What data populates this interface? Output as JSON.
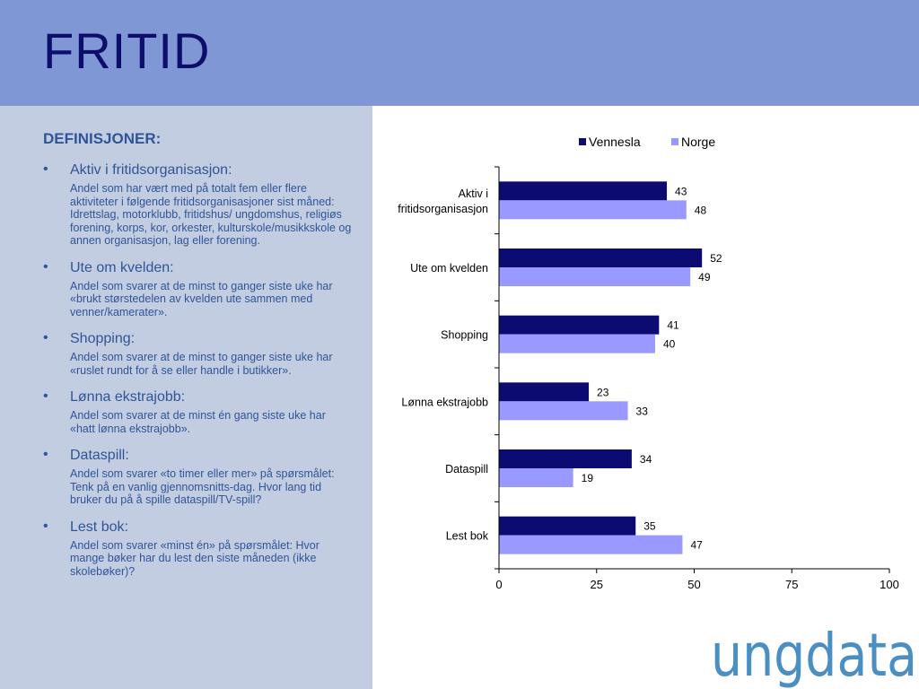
{
  "slide": {
    "title": "FRITID"
  },
  "definitions": {
    "heading": "DEFINISJONER:",
    "items": [
      {
        "term": "Aktiv i fritidsorganisasjon:",
        "description": "Andel som har vært med på totalt fem eller flere aktiviteter i følgende fritidsorganisasjoner sist måned: Idrettslag, motorklubb, fritidshus/ ungdomshus, religiøs forening, korps, kor, orkester, kulturskole/musikkskole og annen organisasjon, lag eller forening."
      },
      {
        "term": "Ute om kvelden:",
        "description": "Andel som svarer at de minst to ganger siste uke har «brukt størstedelen av kvelden ute sammen med venner/kamerater»."
      },
      {
        "term": "Shopping:",
        "description": "Andel som svarer at de minst to ganger siste uke har «ruslet rundt for å se eller handle i butikker»."
      },
      {
        "term": "Lønna ekstrajobb:",
        "description": "Andel som svarer at de minst én gang siste uke har «hatt lønna ekstrajobb»."
      },
      {
        "term": "Dataspill:",
        "description": "Andel som svarer «to timer eller mer» på spørsmålet: Tenk på en vanlig gjennomsnitts-dag. Hvor lang tid bruker du på å spille dataspill/TV-spill?"
      },
      {
        "term": "Lest bok:",
        "description": "Andel som svarer «minst én» på spørsmålet: Hvor mange bøker har du lest den siste måneden (ikke skolebøker)?"
      }
    ]
  },
  "chart_data": {
    "type": "bar",
    "orientation": "horizontal",
    "categories": [
      "Aktiv i fritidsorganisasjon",
      "Ute om kvelden",
      "Shopping",
      "Lønna ekstrajobb",
      "Dataspill",
      "Lest bok"
    ],
    "category_lines": [
      [
        "Aktiv i",
        "fritidsorganisasjon"
      ],
      [
        "Ute om kvelden"
      ],
      [
        "Shopping"
      ],
      [
        "Lønna ekstrajobb"
      ],
      [
        "Dataspill"
      ],
      [
        "Lest bok"
      ]
    ],
    "series": [
      {
        "name": "Vennesla",
        "color": "#0b0b72",
        "values": [
          43,
          52,
          41,
          23,
          34,
          35
        ]
      },
      {
        "name": "Norge",
        "color": "#9999ff",
        "values": [
          48,
          49,
          40,
          33,
          19,
          47
        ]
      }
    ],
    "xlim": [
      0,
      100
    ],
    "xticks": [
      0,
      25,
      50,
      75,
      100
    ],
    "grid": false,
    "legend_position": "top",
    "data_labels": true
  },
  "logo": {
    "text": "ungdata",
    "color": "#4a8fc4"
  }
}
